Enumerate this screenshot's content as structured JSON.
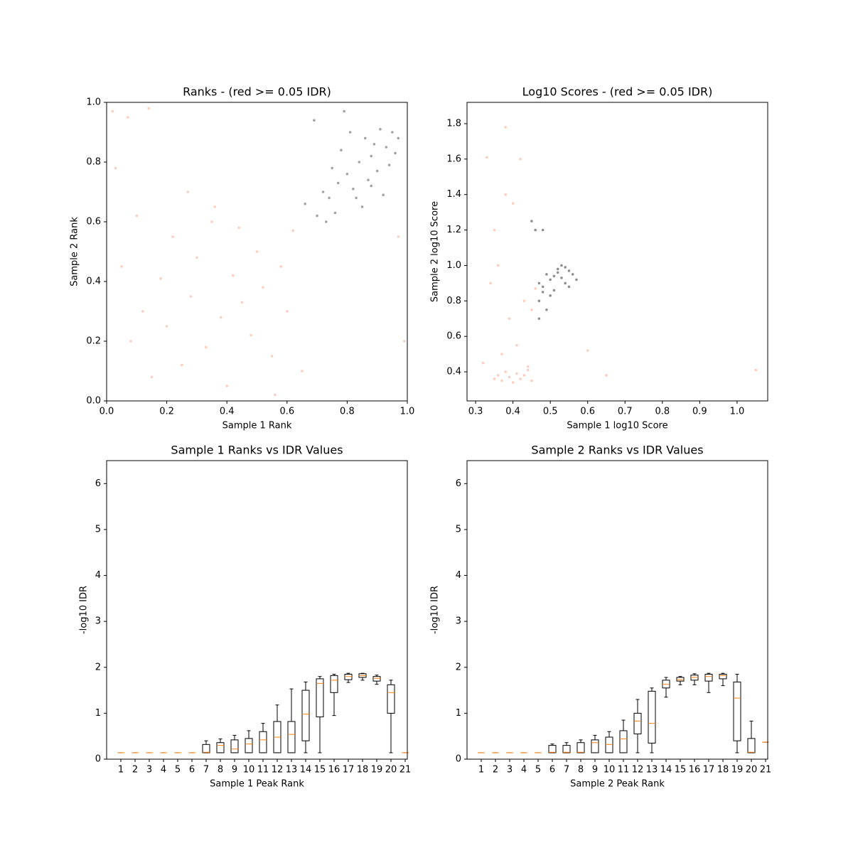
{
  "chart_data": [
    {
      "type": "scatter",
      "title": "Ranks - (red >= 0.05 IDR)",
      "x_label": "Sample 1 Rank",
      "y_label": "Sample 2 Rank",
      "xlim": [
        0,
        1
      ],
      "ylim": [
        0,
        1
      ],
      "xticks": [
        {
          "value": 0,
          "label": "0.0"
        },
        0.2,
        0.4,
        0.6,
        0.8,
        {
          "value": 1,
          "label": "1.0"
        }
      ],
      "yticks": [
        {
          "value": 0,
          "label": "0.0"
        },
        0.2,
        0.4,
        0.6,
        0.8,
        {
          "value": 1,
          "label": "1.0"
        }
      ],
      "series": [
        {
          "color": "#fcae91",
          "x": [
            0.02,
            0.05,
            0.08,
            0.1,
            0.12,
            0.15,
            0.18,
            0.2,
            0.22,
            0.25,
            0.28,
            0.3,
            0.33,
            0.35,
            0.38,
            0.4,
            0.42,
            0.45,
            0.48,
            0.5,
            0.52,
            0.55,
            0.58,
            0.6,
            0.62,
            0.65,
            0.03,
            0.07,
            0.14,
            0.27,
            0.36,
            0.44,
            0.99,
            0.97,
            0.56
          ],
          "values": [
            0.97,
            0.45,
            0.2,
            0.62,
            0.3,
            0.08,
            0.41,
            0.25,
            0.55,
            0.12,
            0.35,
            0.48,
            0.18,
            0.6,
            0.28,
            0.05,
            0.42,
            0.33,
            0.22,
            0.5,
            0.38,
            0.15,
            0.45,
            0.3,
            0.57,
            0.1,
            0.78,
            0.95,
            0.98,
            0.7,
            0.65,
            0.58,
            0.2,
            0.55,
            0.02
          ]
        },
        {
          "color": "#666666",
          "x": [
            0.66,
            0.7,
            0.72,
            0.74,
            0.75,
            0.77,
            0.78,
            0.8,
            0.81,
            0.82,
            0.84,
            0.85,
            0.86,
            0.87,
            0.88,
            0.89,
            0.9,
            0.91,
            0.92,
            0.93,
            0.94,
            0.95,
            0.96,
            0.97,
            0.69,
            0.73,
            0.79,
            0.83,
            0.76,
            0.88
          ],
          "values": [
            0.66,
            0.62,
            0.7,
            0.68,
            0.78,
            0.73,
            0.84,
            0.76,
            0.9,
            0.71,
            0.8,
            0.65,
            0.88,
            0.74,
            0.82,
            0.86,
            0.77,
            0.91,
            0.69,
            0.85,
            0.79,
            0.9,
            0.83,
            0.88,
            0.94,
            0.6,
            0.97,
            0.68,
            0.63,
            0.72
          ]
        }
      ]
    },
    {
      "type": "scatter",
      "title": "Log10 Scores - (red >= 0.05 IDR)",
      "x_label": "Sample 1 log10 Score",
      "y_label": "Sample 2 log10 Score",
      "xlim": [
        0.277,
        1.082
      ],
      "ylim": [
        0.236,
        1.92
      ],
      "xticks": [
        0.3,
        0.4,
        0.5,
        0.6,
        0.7,
        0.8,
        0.9,
        {
          "value": 1,
          "label": "1.0"
        }
      ],
      "yticks": [
        0.4,
        0.6,
        0.8,
        {
          "value": 1,
          "label": "1.0"
        },
        1.2,
        1.4,
        1.6,
        1.8
      ],
      "series": [
        {
          "color": "#fcae91",
          "x": [
            0.35,
            0.36,
            0.37,
            0.38,
            0.39,
            0.4,
            0.41,
            0.42,
            0.43,
            0.44,
            0.45,
            0.38,
            0.4,
            0.42,
            0.36,
            0.34,
            0.33,
            0.37,
            0.39,
            0.41,
            0.46,
            0.43,
            0.35,
            1.05,
            0.65,
            0.6,
            0.32,
            0.38,
            0.44,
            0.45
          ],
          "values": [
            0.36,
            0.38,
            0.35,
            0.4,
            0.37,
            0.34,
            0.39,
            0.36,
            0.38,
            0.41,
            0.35,
            1.4,
            1.35,
            1.6,
            1.0,
            0.9,
            1.61,
            0.5,
            0.7,
            0.55,
            0.87,
            0.8,
            1.2,
            0.41,
            0.38,
            0.52,
            0.45,
            1.78,
            0.43,
            0.75
          ]
        },
        {
          "color": "#444444",
          "x": [
            0.47,
            0.48,
            0.49,
            0.5,
            0.51,
            0.52,
            0.53,
            0.54,
            0.55,
            0.56,
            0.5,
            0.52,
            0.53,
            0.55,
            0.49,
            0.47,
            0.46,
            0.48,
            0.51,
            0.54,
            0.57,
            0.45,
            0.47,
            0.48
          ],
          "values": [
            0.9,
            0.88,
            0.95,
            0.92,
            0.86,
            0.98,
            0.93,
            0.9,
            0.97,
            0.95,
            0.83,
            0.96,
            1.0,
            0.88,
            0.75,
            0.8,
            1.2,
            1.2,
            0.94,
            0.99,
            0.92,
            1.25,
            0.7,
            0.85
          ]
        }
      ]
    },
    {
      "type": "box",
      "title": "Sample 1 Ranks vs IDR Values",
      "x_label": "Sample 1 Peak Rank",
      "y_label": "-log10 IDR",
      "xlim": [
        0,
        21.15
      ],
      "ylim": [
        0,
        6.5
      ],
      "xticks": [
        1,
        2,
        3,
        4,
        5,
        6,
        7,
        8,
        9,
        10,
        11,
        12,
        13,
        14,
        15,
        16,
        17,
        18,
        19,
        20,
        21
      ],
      "yticks": [
        0,
        1,
        2,
        3,
        4,
        5,
        6
      ],
      "x": [
        1,
        2,
        3,
        4,
        5,
        6,
        7,
        8,
        9,
        10,
        11,
        12,
        13,
        14,
        15,
        16,
        17,
        18,
        19,
        20,
        21
      ],
      "whislo": [
        0.14,
        0.14,
        0.14,
        0.14,
        0.14,
        0.14,
        0.14,
        0.14,
        0.14,
        0.14,
        0.14,
        0.14,
        0.14,
        0.14,
        0.14,
        0.95,
        1.67,
        1.72,
        1.63,
        0.14,
        0.14
      ],
      "q1": [
        0.14,
        0.14,
        0.14,
        0.14,
        0.14,
        0.14,
        0.14,
        0.14,
        0.14,
        0.14,
        0.14,
        0.14,
        0.14,
        0.4,
        0.92,
        1.45,
        1.73,
        1.78,
        1.7,
        1.0,
        0.14
      ],
      "median": [
        0.14,
        0.14,
        0.14,
        0.14,
        0.14,
        0.14,
        0.15,
        0.3,
        0.22,
        0.33,
        0.42,
        0.48,
        0.54,
        0.98,
        1.65,
        1.72,
        1.8,
        1.82,
        1.76,
        1.45,
        0.14
      ],
      "q3": [
        0.14,
        0.14,
        0.14,
        0.14,
        0.14,
        0.14,
        0.32,
        0.36,
        0.42,
        0.45,
        0.6,
        0.82,
        0.82,
        1.5,
        1.75,
        1.82,
        1.85,
        1.86,
        1.8,
        1.62,
        0.14
      ],
      "whishi": [
        0.14,
        0.14,
        0.14,
        0.14,
        0.14,
        0.14,
        0.4,
        0.44,
        0.52,
        0.62,
        0.78,
        1.18,
        1.53,
        1.68,
        1.8,
        1.85,
        1.87,
        1.87,
        1.83,
        1.72,
        0.14
      ]
    },
    {
      "type": "box",
      "title": "Sample 2 Ranks vs IDR Values",
      "x_label": "Sample 2 Peak Rank",
      "y_label": "-log10 IDR",
      "xlim": [
        0,
        21.15
      ],
      "ylim": [
        0,
        6.5
      ],
      "xticks": [
        1,
        2,
        3,
        4,
        5,
        6,
        7,
        8,
        9,
        10,
        11,
        12,
        13,
        14,
        15,
        16,
        17,
        18,
        19,
        20,
        21
      ],
      "yticks": [
        0,
        1,
        2,
        3,
        4,
        5,
        6
      ],
      "x": [
        1,
        2,
        3,
        4,
        5,
        6,
        7,
        8,
        9,
        10,
        11,
        12,
        13,
        14,
        15,
        16,
        17,
        18,
        19,
        20,
        21
      ],
      "whislo": [
        0.14,
        0.14,
        0.14,
        0.14,
        0.14,
        0.14,
        0.14,
        0.14,
        0.14,
        0.14,
        0.14,
        0.14,
        0.14,
        1.35,
        1.62,
        1.62,
        1.45,
        1.6,
        0.14,
        0.14,
        0.37
      ],
      "q1": [
        0.14,
        0.14,
        0.14,
        0.14,
        0.14,
        0.14,
        0.14,
        0.14,
        0.14,
        0.14,
        0.14,
        0.55,
        0.35,
        1.55,
        1.7,
        1.72,
        1.7,
        1.75,
        0.4,
        0.14,
        0.37
      ],
      "median": [
        0.14,
        0.14,
        0.14,
        0.14,
        0.14,
        0.15,
        0.15,
        0.15,
        0.36,
        0.32,
        0.44,
        0.83,
        0.78,
        1.63,
        1.73,
        1.78,
        1.8,
        1.82,
        1.33,
        0.15,
        0.37
      ],
      "q3": [
        0.14,
        0.14,
        0.14,
        0.14,
        0.14,
        0.3,
        0.3,
        0.36,
        0.42,
        0.48,
        0.62,
        1.0,
        1.48,
        1.72,
        1.78,
        1.83,
        1.85,
        1.85,
        1.68,
        0.45,
        0.37
      ],
      "whishi": [
        0.14,
        0.14,
        0.14,
        0.14,
        0.14,
        0.33,
        0.36,
        0.42,
        0.52,
        0.6,
        0.85,
        1.3,
        1.55,
        1.78,
        1.8,
        1.86,
        1.87,
        1.87,
        1.85,
        0.83,
        0.37
      ]
    }
  ]
}
